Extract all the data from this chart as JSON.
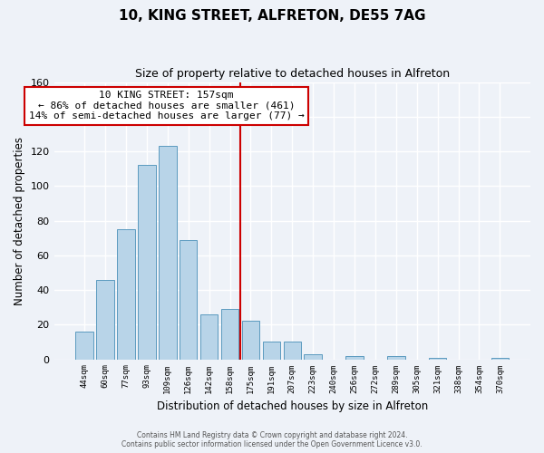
{
  "title": "10, KING STREET, ALFRETON, DE55 7AG",
  "subtitle": "Size of property relative to detached houses in Alfreton",
  "xlabel": "Distribution of detached houses by size in Alfreton",
  "ylabel": "Number of detached properties",
  "bar_labels": [
    "44sqm",
    "60sqm",
    "77sqm",
    "93sqm",
    "109sqm",
    "126sqm",
    "142sqm",
    "158sqm",
    "175sqm",
    "191sqm",
    "207sqm",
    "223sqm",
    "240sqm",
    "256sqm",
    "272sqm",
    "289sqm",
    "305sqm",
    "321sqm",
    "338sqm",
    "354sqm",
    "370sqm"
  ],
  "bar_values": [
    16,
    46,
    75,
    112,
    123,
    69,
    26,
    29,
    22,
    10,
    10,
    3,
    0,
    2,
    0,
    2,
    0,
    1,
    0,
    0,
    1
  ],
  "bar_color": "#b8d4e8",
  "bar_edge_color": "#5b9abf",
  "reference_line_x": 7.5,
  "reference_line_color": "#cc0000",
  "annotation_title": "10 KING STREET: 157sqm",
  "annotation_line1": "← 86% of detached houses are smaller (461)",
  "annotation_line2": "14% of semi-detached houses are larger (77) →",
  "annotation_box_color": "#ffffff",
  "annotation_box_edge_color": "#cc0000",
  "ylim": [
    0,
    160
  ],
  "yticks": [
    0,
    20,
    40,
    60,
    80,
    100,
    120,
    140,
    160
  ],
  "footer_line1": "Contains HM Land Registry data © Crown copyright and database right 2024.",
  "footer_line2": "Contains public sector information licensed under the Open Government Licence v3.0.",
  "bg_color": "#eef2f8",
  "plot_bg_color": "#eef2f8",
  "grid_color": "#ffffff"
}
